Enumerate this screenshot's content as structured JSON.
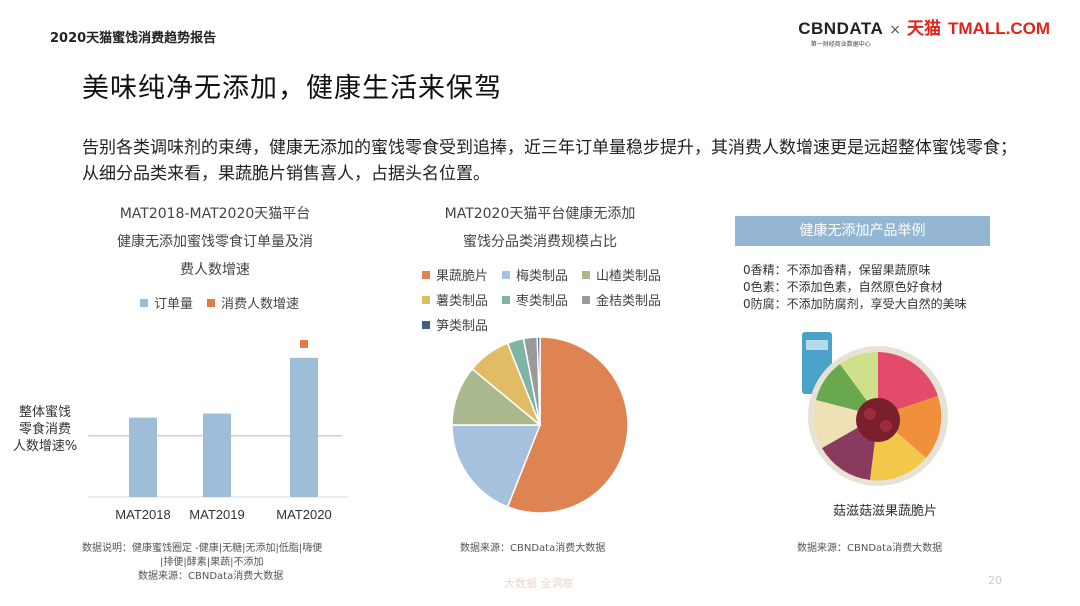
{
  "header": {
    "report_title": "2020天猫蜜饯消费趋势报告",
    "logo_cbn": "CBNDATA",
    "logo_cbn_sub": "第一财经商业数据中心",
    "logo_times": "×",
    "logo_tmall": "天猫",
    "logo_tmall_en": "TMALL.COM"
  },
  "slide_title": "美味纯净无添加，健康生活来保驾",
  "intro_text": "告别各类调味剂的束缚，健康无添加的蜜饯零食受到追捧，近三年订单量稳步提升，其消费人数增速更是远超整体蜜饯零食；从细分品类来看，果蔬脆片销售喜人，占据头名位置。",
  "chart_data": [
    {
      "type": "bar",
      "title_lines": [
        "MAT2018-MAT2020天猫平台",
        "健康无添加蜜饯零食订单量及消",
        "费人数增速"
      ],
      "categories": [
        "MAT2018",
        "MAT2019",
        "MAT2020"
      ],
      "series": [
        {
          "name": "订单量",
          "values": [
            0.57,
            0.6,
            1.0
          ],
          "color": "#9dbdd9"
        },
        {
          "name": "消费人数增速",
          "values": [
            null,
            null,
            1.1
          ],
          "color": "#e07b47"
        }
      ],
      "reference_line": {
        "label_lines": [
          "整体蜜饯",
          "零食消费",
          "人数增速%"
        ],
        "value": 0.44,
        "color": "#f0b8a0"
      },
      "ylim": [
        0,
        1.2
      ],
      "legend_position": "top",
      "grid": false
    },
    {
      "type": "pie",
      "title_lines": [
        "MAT2020天猫平台健康无添加",
        "蜜饯分品类消费规模占比"
      ],
      "slices": [
        {
          "name": "果蔬脆片",
          "value": 56,
          "color": "#dd8452"
        },
        {
          "name": "梅类制品",
          "value": 19,
          "color": "#a5c1dd"
        },
        {
          "name": "山楂类制品",
          "value": 11,
          "color": "#aab88d"
        },
        {
          "name": "薯类制品",
          "value": 8,
          "color": "#e0bd64"
        },
        {
          "name": "枣类制品",
          "value": 3,
          "color": "#7fb5a6"
        },
        {
          "name": "金桔类制品",
          "value": 2.5,
          "color": "#9a9a9a"
        },
        {
          "name": "笋类制品",
          "value": 0.5,
          "color": "#3d5f8e"
        }
      ],
      "legend_position": "top"
    }
  ],
  "notes": {
    "bar_note_lines": [
      "数据说明：健康蜜饯圈定 -健康|无糖|无添加|低脂|嗨便",
      "|排便|酵素|果蔬|不添加",
      "数据来源：CBNData消费大数据"
    ],
    "pie_note": "数据来源：CBNData消费大数据",
    "example_note": "数据来源：CBNData消费大数据"
  },
  "example": {
    "header": "健康无添加产品举例",
    "lines": [
      "0香精：不添加香精，保留果蔬原味",
      "0色素：不添加色素，自然原色好食材",
      "0防腐：不添加防腐剂，享受大自然的美味"
    ],
    "caption": "菇滋菇滋果蔬脆片"
  },
  "footer": {
    "tag": "大数据 全洞察",
    "page": "20"
  }
}
